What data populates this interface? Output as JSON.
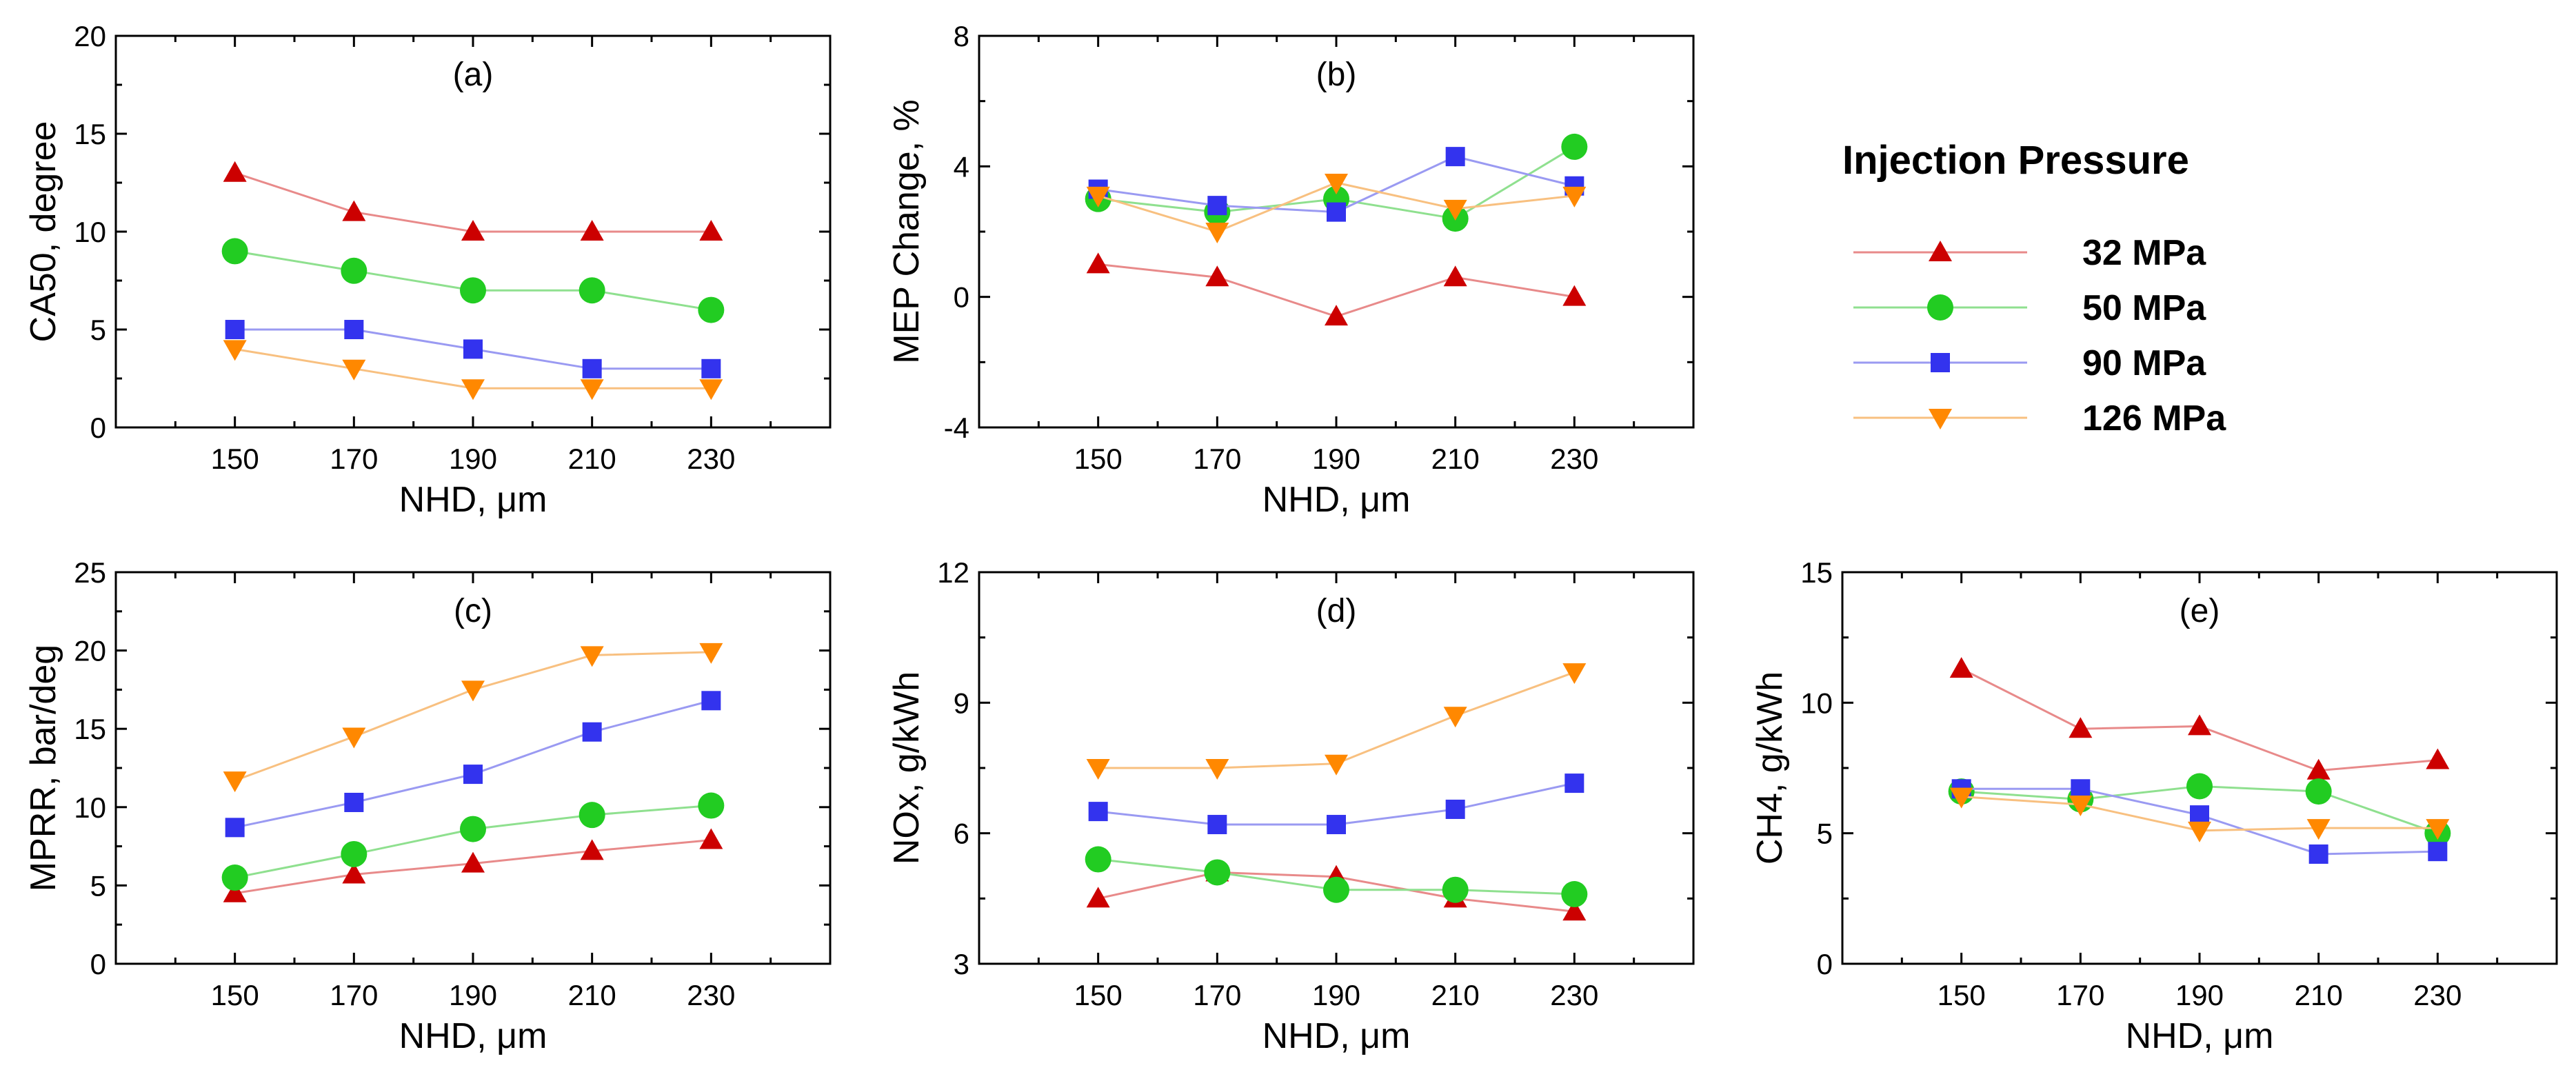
{
  "legend": {
    "title": "Injection Pressure"
  },
  "series_styles": [
    {
      "name": "32 MPa",
      "color": "#cc0000",
      "line": "#e88a8a",
      "marker": "triangle-up"
    },
    {
      "name": "50 MPa",
      "color": "#22cc22",
      "line": "#8fe08f",
      "marker": "circle"
    },
    {
      "name": "90 MPa",
      "color": "#3333ee",
      "line": "#9a9af2",
      "marker": "square"
    },
    {
      "name": "126 MPa",
      "color": "#ff8800",
      "line": "#f8c080",
      "marker": "triangle-down"
    }
  ],
  "chart_data": [
    {
      "type": "line",
      "panel": "(a)",
      "xlabel": "NHD, μm",
      "ylabel": "CA50, degree",
      "x": [
        150,
        170,
        190,
        210,
        230
      ],
      "xlim": [
        130,
        250
      ],
      "ylim": [
        0,
        20
      ],
      "yticks": [
        0,
        5,
        10,
        15,
        20
      ],
      "series": [
        {
          "name": "32 MPa",
          "values": [
            13,
            11,
            10,
            10,
            10
          ]
        },
        {
          "name": "50 MPa",
          "values": [
            9,
            8,
            7,
            7,
            6
          ]
        },
        {
          "name": "90 MPa",
          "values": [
            5,
            5,
            4,
            3,
            3
          ]
        },
        {
          "name": "126 MPa",
          "values": [
            4,
            3,
            2,
            2,
            2
          ]
        }
      ]
    },
    {
      "type": "line",
      "panel": "(b)",
      "xlabel": "NHD, μm",
      "ylabel": "MEP Change, %",
      "x": [
        150,
        170,
        190,
        210,
        230
      ],
      "xlim": [
        130,
        250
      ],
      "ylim": [
        -4,
        8
      ],
      "yticks": [
        -4,
        0,
        4,
        8
      ],
      "series": [
        {
          "name": "32 MPa",
          "values": [
            1.0,
            0.6,
            -0.6,
            0.6,
            0.0
          ]
        },
        {
          "name": "50 MPa",
          "values": [
            3.0,
            2.6,
            3.0,
            2.4,
            4.6
          ]
        },
        {
          "name": "90 MPa",
          "values": [
            3.3,
            2.8,
            2.6,
            4.3,
            3.4
          ]
        },
        {
          "name": "126 MPa",
          "values": [
            3.1,
            2.0,
            3.5,
            2.7,
            3.1
          ]
        }
      ]
    },
    {
      "type": "line",
      "panel": "(c)",
      "xlabel": "NHD, μm",
      "ylabel": "MPRR, bar/deg",
      "x": [
        150,
        170,
        190,
        210,
        230
      ],
      "xlim": [
        130,
        250
      ],
      "ylim": [
        0,
        25
      ],
      "yticks": [
        0,
        5,
        10,
        15,
        20,
        25
      ],
      "series": [
        {
          "name": "32 MPa",
          "values": [
            4.5,
            5.7,
            6.4,
            7.2,
            7.9
          ]
        },
        {
          "name": "50 MPa",
          "values": [
            5.5,
            7.0,
            8.6,
            9.5,
            10.1
          ]
        },
        {
          "name": "90 MPa",
          "values": [
            8.7,
            10.3,
            12.1,
            14.8,
            16.8
          ]
        },
        {
          "name": "126 MPa",
          "values": [
            11.7,
            14.5,
            17.5,
            19.7,
            19.9
          ]
        }
      ]
    },
    {
      "type": "line",
      "panel": "(d)",
      "xlabel": "NHD, μm",
      "ylabel": "NOx, g/kWh",
      "x": [
        150,
        170,
        190,
        210,
        230
      ],
      "xlim": [
        130,
        250
      ],
      "ylim": [
        3,
        12
      ],
      "yticks": [
        3,
        6,
        9,
        12
      ],
      "series": [
        {
          "name": "32 MPa",
          "values": [
            4.5,
            5.1,
            5.0,
            4.5,
            4.2
          ]
        },
        {
          "name": "50 MPa",
          "values": [
            5.4,
            5.1,
            4.7,
            4.7,
            4.6
          ]
        },
        {
          "name": "90 MPa",
          "values": [
            6.5,
            6.2,
            6.2,
            6.55,
            7.15
          ]
        },
        {
          "name": "126 MPa",
          "values": [
            7.5,
            7.5,
            7.6,
            8.7,
            9.7
          ]
        }
      ]
    },
    {
      "type": "line",
      "panel": "(e)",
      "xlabel": "NHD, μm",
      "ylabel": "CH4, g/kWh",
      "x": [
        150,
        170,
        190,
        210,
        230
      ],
      "xlim": [
        130,
        250
      ],
      "ylim": [
        0,
        15
      ],
      "yticks": [
        0,
        5,
        10,
        15
      ],
      "series": [
        {
          "name": "32 MPa",
          "values": [
            11.3,
            9.0,
            9.1,
            7.4,
            7.8
          ]
        },
        {
          "name": "50 MPa",
          "values": [
            6.6,
            6.3,
            6.8,
            6.6,
            5.0
          ]
        },
        {
          "name": "90 MPa",
          "values": [
            6.7,
            6.7,
            5.7,
            4.2,
            4.3
          ]
        },
        {
          "name": "126 MPa",
          "values": [
            6.4,
            6.1,
            5.1,
            5.2,
            5.2
          ]
        }
      ]
    }
  ]
}
